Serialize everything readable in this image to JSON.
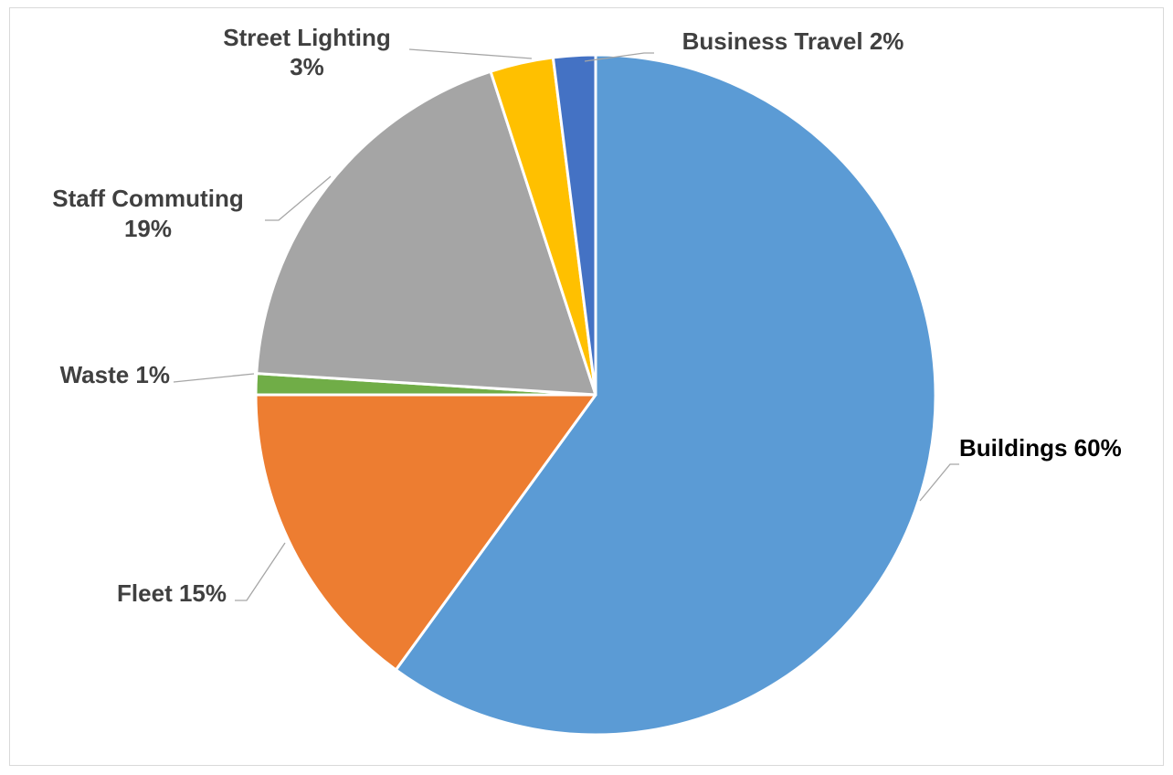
{
  "chart_data": {
    "type": "pie",
    "title": "",
    "start_angle_deg": 0,
    "direction": "clockwise",
    "slices": [
      {
        "name": "Buildings",
        "value": 60,
        "label_text": "Buildings 60%",
        "label_lines": [
          "Buildings 60%"
        ],
        "color": "#5b9bd5",
        "label_color": "#000000"
      },
      {
        "name": "Fleet",
        "value": 15,
        "label_text": "Fleet 15%",
        "label_lines": [
          "Fleet 15%"
        ],
        "color": "#ed7d31",
        "label_color": "#404040"
      },
      {
        "name": "Waste",
        "value": 1,
        "label_text": "Waste 1%",
        "label_lines": [
          "Waste 1%"
        ],
        "color": "#70ad47",
        "label_color": "#404040"
      },
      {
        "name": "Staff Commuting",
        "value": 19,
        "label_text": "Staff Commuting 19%",
        "label_lines": [
          "Staff Commuting",
          "19%"
        ],
        "color": "#a5a5a5",
        "label_color": "#404040"
      },
      {
        "name": "Street Lighting",
        "value": 3,
        "label_text": "Street Lighting 3%",
        "label_lines": [
          "Street Lighting",
          "3%"
        ],
        "color": "#ffc000",
        "label_color": "#404040"
      },
      {
        "name": "Business Travel",
        "value": 2,
        "label_text": "Business Travel 2%",
        "label_lines": [
          "Business Travel 2%"
        ],
        "color": "#4472c4",
        "label_color": "#404040"
      }
    ]
  }
}
